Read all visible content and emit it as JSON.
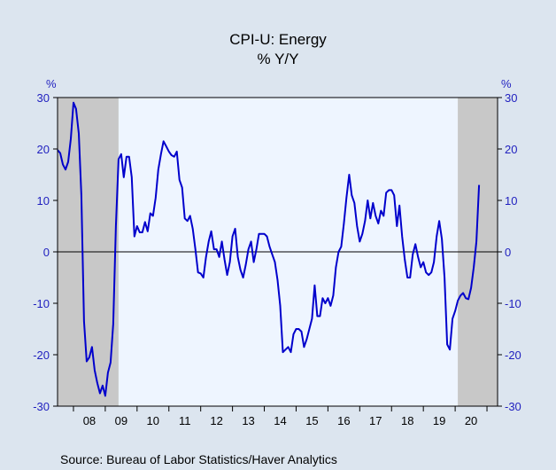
{
  "chart_data": {
    "type": "line",
    "title": "CPI-U: Energy",
    "subtitle": "% Y/Y",
    "ylabel_left": "%",
    "ylabel_right": "%",
    "ylim": [
      -30,
      30
    ],
    "yticks": [
      30,
      20,
      10,
      0,
      -10,
      -20,
      -30
    ],
    "x_start": 2007.5,
    "x_end": 2021.333,
    "year_labels": [
      {
        "year": "08",
        "x": 2008.5
      },
      {
        "year": "09",
        "x": 2009.5
      },
      {
        "year": "10",
        "x": 2010.5
      },
      {
        "year": "11",
        "x": 2011.5
      },
      {
        "year": "12",
        "x": 2012.5
      },
      {
        "year": "13",
        "x": 2013.5
      },
      {
        "year": "14",
        "x": 2014.5
      },
      {
        "year": "15",
        "x": 2015.5
      },
      {
        "year": "16",
        "x": 2016.5
      },
      {
        "year": "17",
        "x": 2017.5
      },
      {
        "year": "18",
        "x": 2018.5
      },
      {
        "year": "19",
        "x": 2019.5
      },
      {
        "year": "20",
        "x": 2020.5
      }
    ],
    "recessions": [
      {
        "start": 2007.5,
        "end": 2009.417
      },
      {
        "start": 2020.083,
        "end": 2021.333
      }
    ],
    "colors": {
      "line": "#0000cc",
      "plot_bg": "#eef5ff",
      "recession": "#c8c8c8",
      "axis_text": "#1f1fbf"
    },
    "series": [
      {
        "values": [
          [
            2007.5,
            19.8
          ],
          [
            2007.583,
            19.2
          ],
          [
            2007.667,
            17.0
          ],
          [
            2007.75,
            16.0
          ],
          [
            2007.833,
            17.5
          ],
          [
            2007.917,
            22.0
          ],
          [
            2008.0,
            29.0
          ],
          [
            2008.083,
            27.8
          ],
          [
            2008.167,
            23.0
          ],
          [
            2008.25,
            11.0
          ],
          [
            2008.333,
            -13.5
          ],
          [
            2008.417,
            -21.3
          ],
          [
            2008.5,
            -20.5
          ],
          [
            2008.583,
            -18.5
          ],
          [
            2008.667,
            -23.0
          ],
          [
            2008.75,
            -25.5
          ],
          [
            2008.833,
            -27.5
          ],
          [
            2008.917,
            -26.0
          ],
          [
            2009.0,
            -28.0
          ],
          [
            2009.083,
            -23.5
          ],
          [
            2009.167,
            -21.5
          ],
          [
            2009.25,
            -14.0
          ],
          [
            2009.333,
            5.0
          ],
          [
            2009.417,
            18.0
          ],
          [
            2009.5,
            19.0
          ],
          [
            2009.583,
            14.5
          ],
          [
            2009.667,
            18.5
          ],
          [
            2009.75,
            18.5
          ],
          [
            2009.833,
            14.5
          ],
          [
            2009.917,
            3.0
          ],
          [
            2010.0,
            5.0
          ],
          [
            2010.083,
            3.8
          ],
          [
            2010.167,
            3.8
          ],
          [
            2010.25,
            5.8
          ],
          [
            2010.333,
            4.0
          ],
          [
            2010.417,
            7.5
          ],
          [
            2010.5,
            7.0
          ],
          [
            2010.583,
            10.5
          ],
          [
            2010.667,
            16.0
          ],
          [
            2010.75,
            19.0
          ],
          [
            2010.833,
            21.5
          ],
          [
            2010.917,
            20.5
          ],
          [
            2011.0,
            19.5
          ],
          [
            2011.083,
            18.8
          ],
          [
            2011.167,
            18.5
          ],
          [
            2011.25,
            19.5
          ],
          [
            2011.333,
            14.0
          ],
          [
            2011.417,
            12.5
          ],
          [
            2011.5,
            6.5
          ],
          [
            2011.583,
            6.0
          ],
          [
            2011.667,
            7.0
          ],
          [
            2011.75,
            4.5
          ],
          [
            2011.833,
            0.5
          ],
          [
            2011.917,
            -4.0
          ],
          [
            2012.0,
            -4.2
          ],
          [
            2012.083,
            -5.0
          ],
          [
            2012.167,
            -1.0
          ],
          [
            2012.25,
            2.0
          ],
          [
            2012.333,
            4.0
          ],
          [
            2012.417,
            0.5
          ],
          [
            2012.5,
            0.5
          ],
          [
            2012.583,
            -1.0
          ],
          [
            2012.667,
            2.0
          ],
          [
            2012.75,
            -1.5
          ],
          [
            2012.833,
            -4.5
          ],
          [
            2012.917,
            -2.0
          ],
          [
            2013.0,
            3.0
          ],
          [
            2013.083,
            4.5
          ],
          [
            2013.167,
            -1.0
          ],
          [
            2013.25,
            -3.5
          ],
          [
            2013.333,
            -5.0
          ],
          [
            2013.417,
            -2.5
          ],
          [
            2013.5,
            0.5
          ],
          [
            2013.583,
            2.0
          ],
          [
            2013.667,
            -2.0
          ],
          [
            2013.75,
            0.5
          ],
          [
            2013.833,
            3.5
          ],
          [
            2013.917,
            3.5
          ],
          [
            2014.0,
            3.5
          ],
          [
            2014.083,
            3.0
          ],
          [
            2014.167,
            1.0
          ],
          [
            2014.25,
            -0.5
          ],
          [
            2014.333,
            -2.0
          ],
          [
            2014.417,
            -5.5
          ],
          [
            2014.5,
            -10.5
          ],
          [
            2014.583,
            -19.5
          ],
          [
            2014.667,
            -19.0
          ],
          [
            2014.75,
            -18.5
          ],
          [
            2014.833,
            -19.5
          ],
          [
            2014.917,
            -16.0
          ],
          [
            2015.0,
            -15.0
          ],
          [
            2015.083,
            -15.0
          ],
          [
            2015.167,
            -15.5
          ],
          [
            2015.25,
            -18.5
          ],
          [
            2015.333,
            -17.0
          ],
          [
            2015.417,
            -15.0
          ],
          [
            2015.5,
            -13.0
          ],
          [
            2015.583,
            -6.5
          ],
          [
            2015.667,
            -12.5
          ],
          [
            2015.75,
            -12.5
          ],
          [
            2015.833,
            -9.0
          ],
          [
            2015.917,
            -10.0
          ],
          [
            2016.0,
            -9.0
          ],
          [
            2016.083,
            -10.5
          ],
          [
            2016.167,
            -8.5
          ],
          [
            2016.25,
            -3.0
          ],
          [
            2016.333,
            0.0
          ],
          [
            2016.417,
            1.0
          ],
          [
            2016.5,
            5.5
          ],
          [
            2016.583,
            10.5
          ],
          [
            2016.667,
            15.0
          ],
          [
            2016.75,
            11.0
          ],
          [
            2016.833,
            9.5
          ],
          [
            2016.917,
            5.0
          ],
          [
            2017.0,
            2.0
          ],
          [
            2017.083,
            3.5
          ],
          [
            2017.167,
            6.0
          ],
          [
            2017.25,
            10.0
          ],
          [
            2017.333,
            6.5
          ],
          [
            2017.417,
            9.5
          ],
          [
            2017.5,
            7.0
          ],
          [
            2017.583,
            5.5
          ],
          [
            2017.667,
            8.0
          ],
          [
            2017.75,
            7.0
          ],
          [
            2017.833,
            11.5
          ],
          [
            2017.917,
            12.0
          ],
          [
            2018.0,
            12.0
          ],
          [
            2018.083,
            11.0
          ],
          [
            2018.167,
            5.0
          ],
          [
            2018.25,
            9.0
          ],
          [
            2018.333,
            3.0
          ],
          [
            2018.417,
            -1.5
          ],
          [
            2018.5,
            -5.0
          ],
          [
            2018.583,
            -5.0
          ],
          [
            2018.667,
            -0.5
          ],
          [
            2018.75,
            1.5
          ],
          [
            2018.833,
            -1.0
          ],
          [
            2018.917,
            -3.0
          ],
          [
            2019.0,
            -2.0
          ],
          [
            2019.083,
            -4.0
          ],
          [
            2019.167,
            -4.5
          ],
          [
            2019.25,
            -4.0
          ],
          [
            2019.333,
            -2.0
          ],
          [
            2019.417,
            3.0
          ],
          [
            2019.5,
            6.0
          ],
          [
            2019.583,
            2.5
          ],
          [
            2019.667,
            -5.0
          ],
          [
            2019.75,
            -18.0
          ],
          [
            2019.833,
            -19.0
          ],
          [
            2019.917,
            -13.0
          ],
          [
            2020.0,
            -11.5
          ],
          [
            2020.083,
            -9.5
          ],
          [
            2020.167,
            -8.5
          ],
          [
            2020.25,
            -8.0
          ],
          [
            2020.333,
            -9.0
          ],
          [
            2020.417,
            -9.2
          ],
          [
            2020.5,
            -7.0
          ],
          [
            2020.583,
            -3.0
          ],
          [
            2020.667,
            2.0
          ],
          [
            2020.75,
            13.0
          ]
        ]
      }
    ],
    "source": "Source:  Bureau of Labor Statistics/Haver Analytics"
  }
}
